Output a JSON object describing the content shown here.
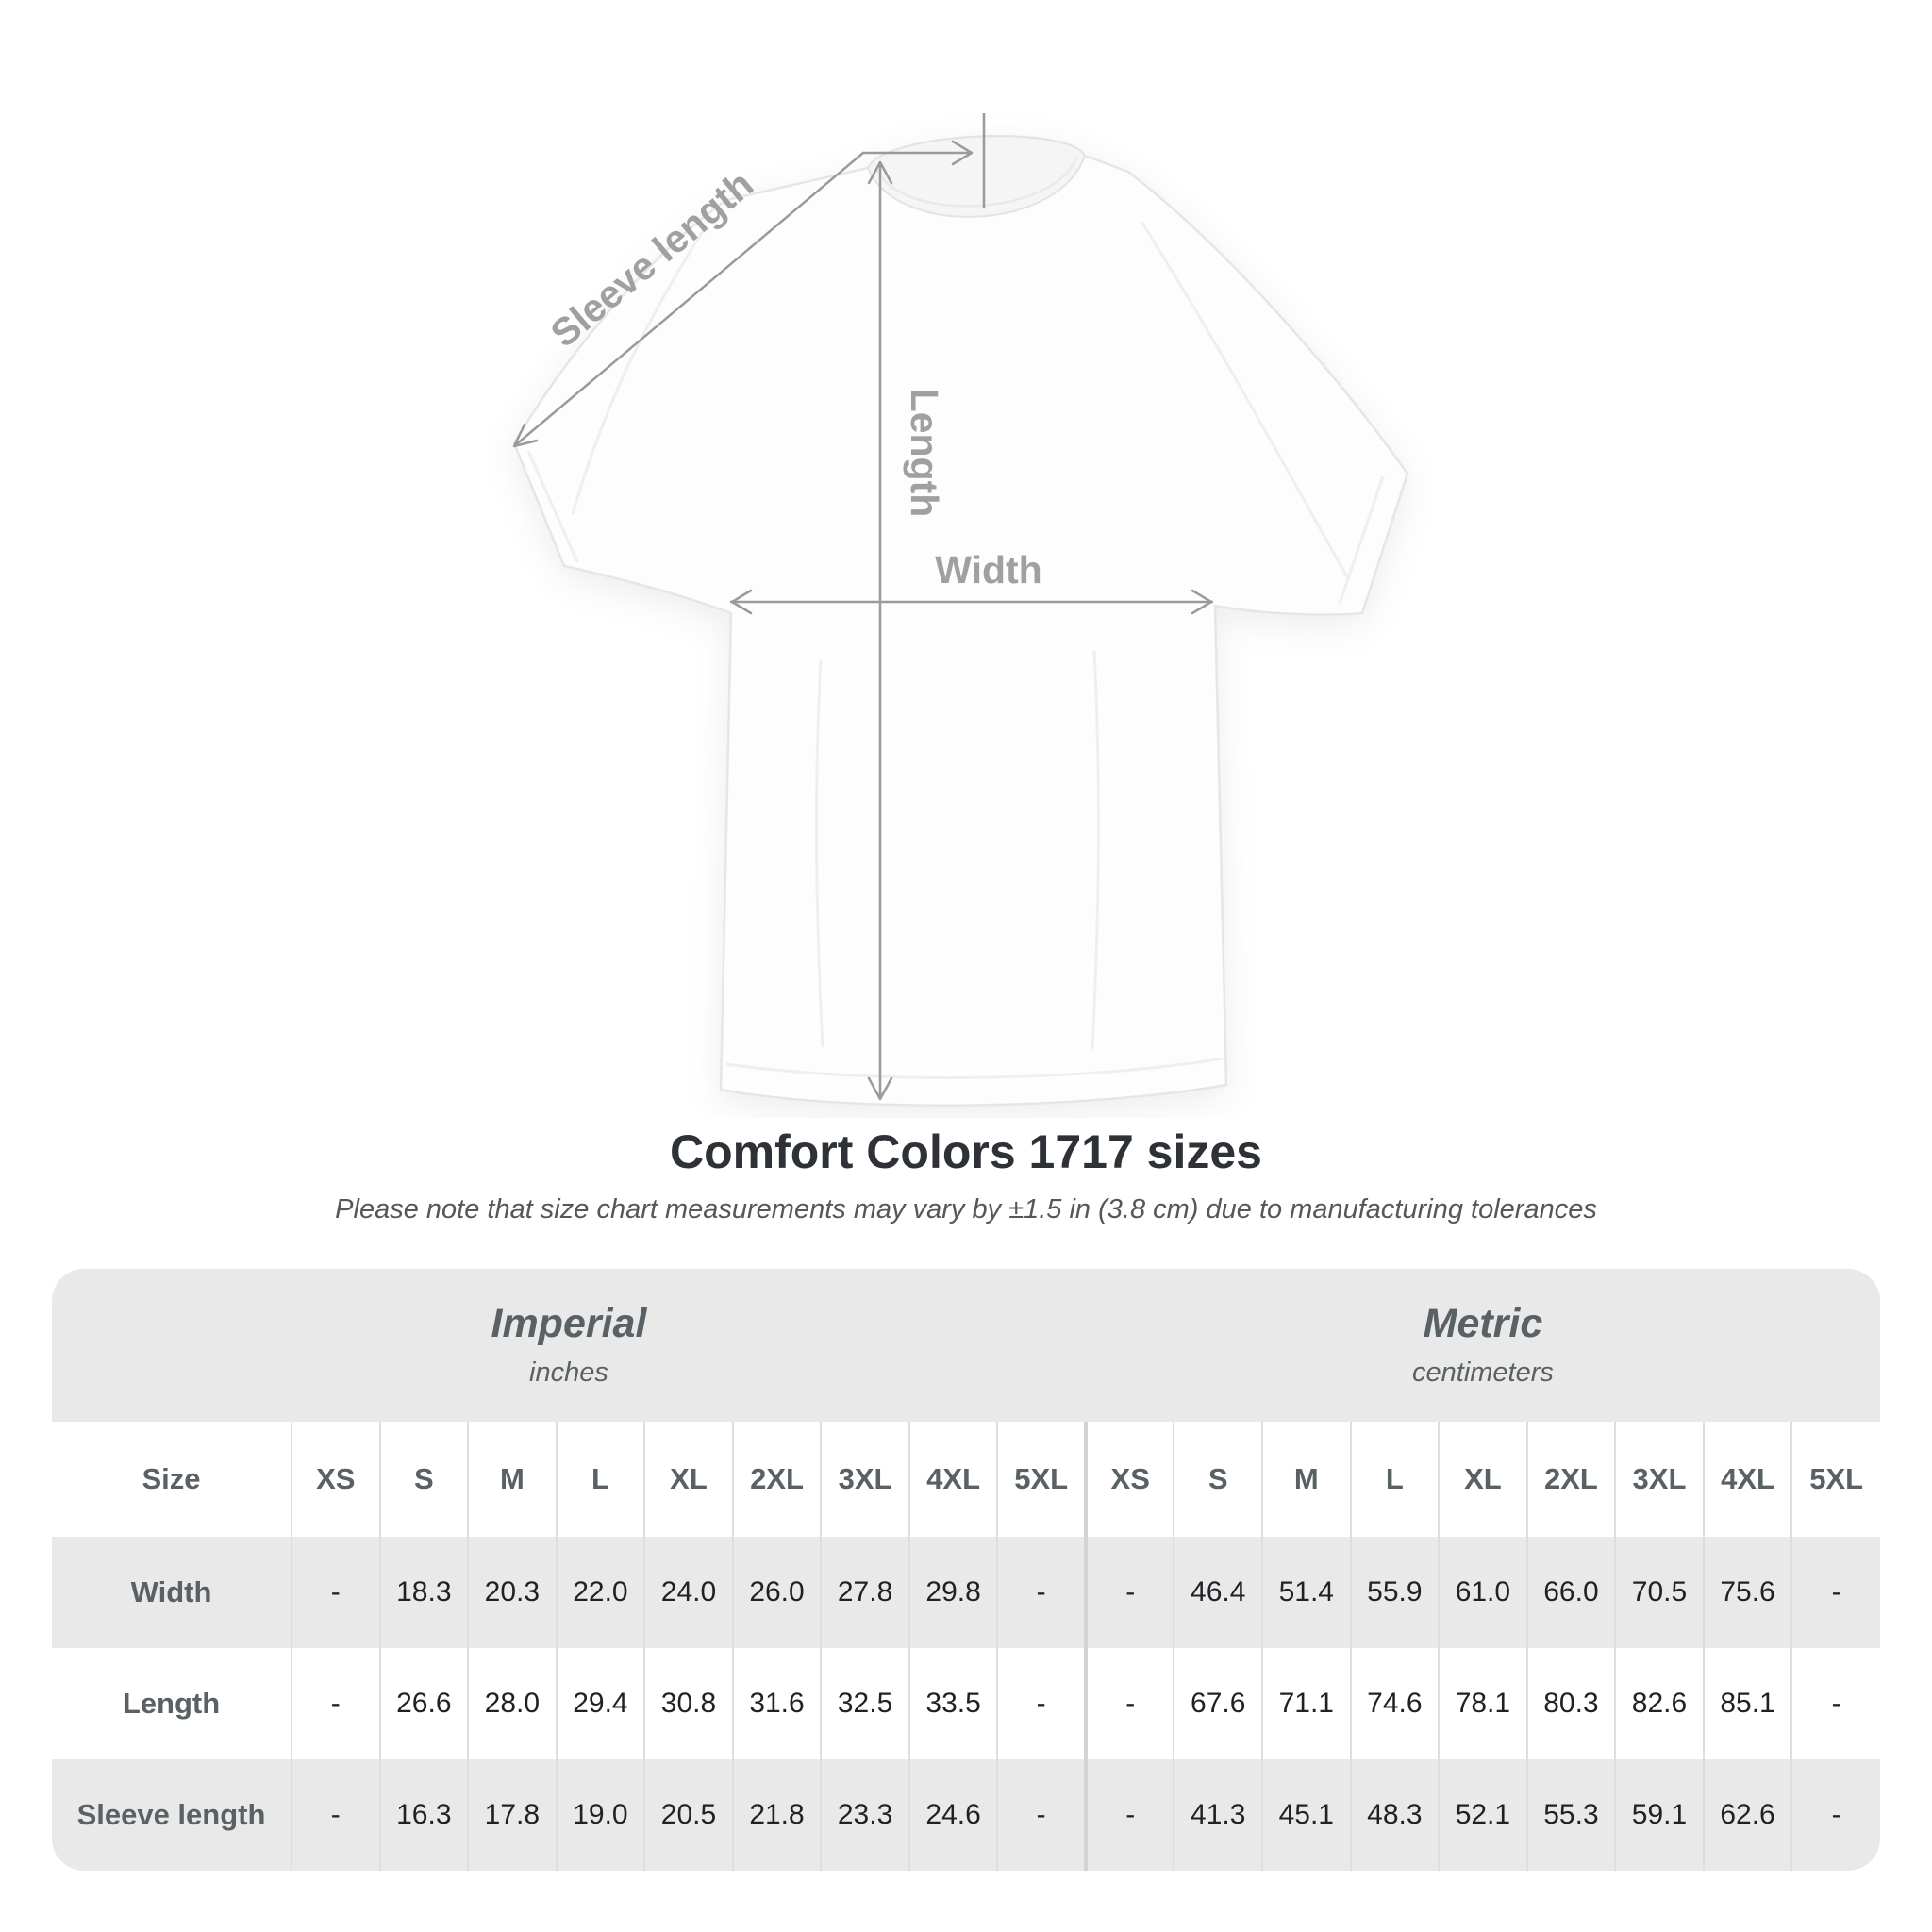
{
  "page": {
    "title": "Comfort Colors 1717 sizes",
    "subtitle": "Please note that size chart measurements may vary by ±1.5 in (3.8 cm) due to manufacturing tolerances"
  },
  "diagram": {
    "labels": {
      "sleeve_length": "Sleeve length",
      "length": "Length",
      "width": "Width"
    }
  },
  "chart_data": {
    "type": "table",
    "title": "Comfort Colors 1717 sizes",
    "sections": [
      {
        "label": "Imperial",
        "unit": "inches"
      },
      {
        "label": "Metric",
        "unit": "centimeters"
      }
    ],
    "size_column_label": "Size",
    "sizes": [
      "XS",
      "S",
      "M",
      "L",
      "XL",
      "2XL",
      "3XL",
      "4XL",
      "5XL"
    ],
    "rows": [
      {
        "label": "Width",
        "imperial": [
          "-",
          "18.3",
          "20.3",
          "22.0",
          "24.0",
          "26.0",
          "27.8",
          "29.8",
          "-"
        ],
        "metric": [
          "-",
          "46.4",
          "51.4",
          "55.9",
          "61.0",
          "66.0",
          "70.5",
          "75.6",
          "-"
        ]
      },
      {
        "label": "Length",
        "imperial": [
          "-",
          "26.6",
          "28.0",
          "29.4",
          "30.8",
          "31.6",
          "32.5",
          "33.5",
          "-"
        ],
        "metric": [
          "-",
          "67.6",
          "71.1",
          "74.6",
          "78.1",
          "80.3",
          "82.6",
          "85.1",
          "-"
        ]
      },
      {
        "label": "Sleeve length",
        "imperial": [
          "-",
          "16.3",
          "17.8",
          "19.0",
          "20.5",
          "21.8",
          "23.3",
          "24.6",
          "-"
        ],
        "metric": [
          "-",
          "41.3",
          "45.1",
          "48.3",
          "52.1",
          "55.3",
          "59.1",
          "62.6",
          "-"
        ]
      }
    ]
  },
  "colors": {
    "annotation_gray": "#9a9a9a",
    "band_background": "#e9e9e9",
    "header_text": "#596165",
    "value_text": "#1e2225"
  }
}
